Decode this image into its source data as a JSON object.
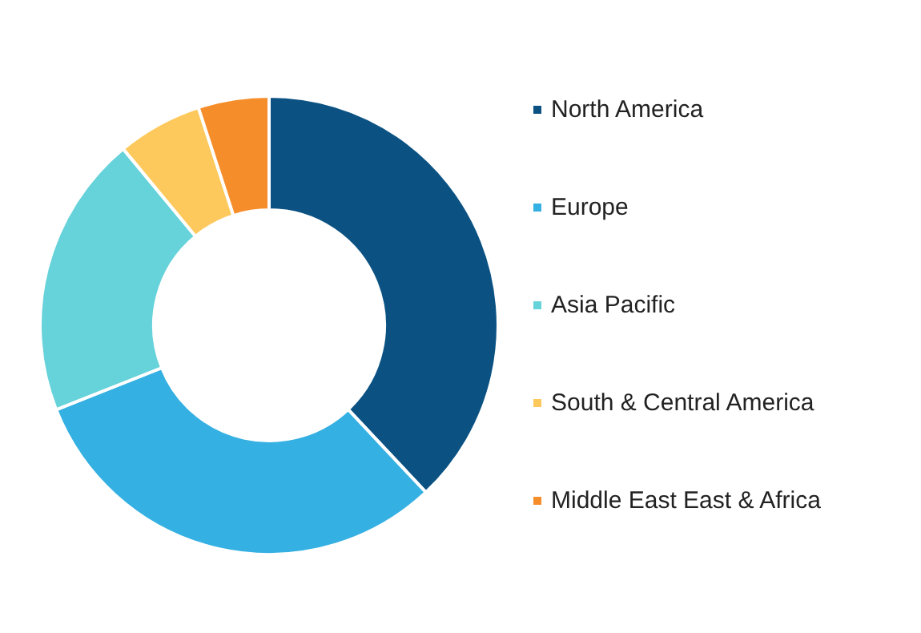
{
  "chart_data": {
    "type": "donut",
    "categories": [
      "North America",
      "Europe",
      "Asia Pacific",
      "South & Central America",
      "Middle East East & Africa"
    ],
    "values": [
      38,
      31,
      20,
      6,
      5
    ],
    "colors": [
      "#0b5283",
      "#35b0e2",
      "#66d2da",
      "#fdc95d",
      "#f68d2b"
    ],
    "legend": "right"
  }
}
